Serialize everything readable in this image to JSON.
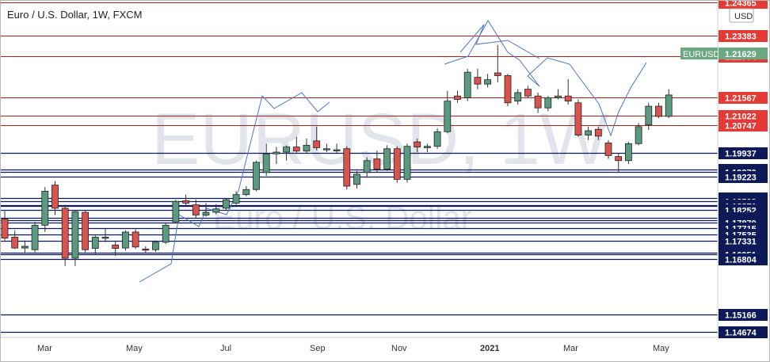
{
  "chart_data": {
    "type": "candlestick",
    "title": "Euro / U.S. Dollar, 1W, FXCM",
    "watermark": {
      "symbol": "EURUSD, 1W",
      "description": "Euro / U.S. Dollar"
    },
    "currency_badge": "USD",
    "symbol_tag": "EURUSD",
    "last_price": "1.21629",
    "last_price_color": "#6aa882",
    "x_tick_labels": [
      "Mar",
      "May",
      "Jul",
      "Sep",
      "Nov",
      "2021",
      "Mar",
      "May"
    ],
    "y_range": [
      1.145,
      1.244
    ],
    "colors": {
      "up": "#5a9a80",
      "down": "#d9534f",
      "wick": "#333333",
      "support": "#0d1a57",
      "resistance": "#a0231e",
      "neutral": "#5a8fae"
    },
    "price_levels": [
      {
        "price": "1.24365",
        "value": 1.24365,
        "type": "resistance"
      },
      {
        "price": "1.23383",
        "value": 1.23383,
        "type": "resistance"
      },
      {
        "price": "1.22774",
        "value": 1.22774,
        "type": "resistance"
      },
      {
        "price": "1.21567",
        "value": 1.21567,
        "type": "resistance"
      },
      {
        "price": "1.21022",
        "value": 1.21022,
        "type": "resistance"
      },
      {
        "price": "1.20747",
        "value": 1.20747,
        "type": "resistance"
      },
      {
        "price": "1.19937",
        "value": 1.19937,
        "type": "support"
      },
      {
        "price": "1.19431",
        "value": 1.19431,
        "type": "support"
      },
      {
        "price": "1.19370",
        "value": 1.1937,
        "type": "support"
      },
      {
        "price": "1.19223",
        "value": 1.19223,
        "type": "support"
      },
      {
        "price": "1.18608",
        "value": 1.18608,
        "type": "support"
      },
      {
        "price": "1.18509",
        "value": 1.18509,
        "type": "support"
      },
      {
        "price": "1.18393",
        "value": 1.18393,
        "type": "support"
      },
      {
        "price": "1.18371",
        "value": 1.18371,
        "type": "support"
      },
      {
        "price": "1.18252",
        "value": 1.18252,
        "type": "support"
      },
      {
        "price": "1.18020",
        "value": 1.1802,
        "type": "support"
      },
      {
        "price": "1.17945",
        "value": 1.17945,
        "type": "support"
      },
      {
        "price": "1.17870",
        "value": 1.1787,
        "type": "support"
      },
      {
        "price": "1.17715",
        "value": 1.17715,
        "type": "support"
      },
      {
        "price": "1.17535",
        "value": 1.17535,
        "type": "support"
      },
      {
        "price": "1.17331",
        "value": 1.17331,
        "type": "support"
      },
      {
        "price": "1.17002",
        "value": 1.17002,
        "type": "support"
      },
      {
        "price": "1.16951",
        "value": 1.16951,
        "type": "support"
      },
      {
        "price": "1.16804",
        "value": 1.16804,
        "type": "support"
      },
      {
        "price": "1.15166",
        "value": 1.15166,
        "type": "support"
      },
      {
        "price": "1.14674",
        "value": 1.14674,
        "type": "support"
      }
    ],
    "series": [
      {
        "o": 1.1798,
        "h": 1.1822,
        "l": 1.1735,
        "c": 1.1742
      },
      {
        "o": 1.1745,
        "h": 1.1765,
        "l": 1.171,
        "c": 1.1713
      },
      {
        "o": 1.1713,
        "h": 1.1735,
        "l": 1.17,
        "c": 1.1718
      },
      {
        "o": 1.1708,
        "h": 1.179,
        "l": 1.17,
        "c": 1.178
      },
      {
        "o": 1.178,
        "h": 1.1892,
        "l": 1.176,
        "c": 1.188
      },
      {
        "o": 1.1898,
        "h": 1.191,
        "l": 1.181,
        "c": 1.183
      },
      {
        "o": 1.183,
        "h": 1.184,
        "l": 1.166,
        "c": 1.1683
      },
      {
        "o": 1.1683,
        "h": 1.1822,
        "l": 1.166,
        "c": 1.182
      },
      {
        "o": 1.1818,
        "h": 1.1825,
        "l": 1.17,
        "c": 1.1708
      },
      {
        "o": 1.1712,
        "h": 1.175,
        "l": 1.1695,
        "c": 1.1745
      },
      {
        "o": 1.1745,
        "h": 1.177,
        "l": 1.173,
        "c": 1.1745
      },
      {
        "o": 1.1722,
        "h": 1.1735,
        "l": 1.169,
        "c": 1.1712
      },
      {
        "o": 1.1713,
        "h": 1.1765,
        "l": 1.1705,
        "c": 1.176
      },
      {
        "o": 1.176,
        "h": 1.1768,
        "l": 1.171,
        "c": 1.1716
      },
      {
        "o": 1.171,
        "h": 1.1718,
        "l": 1.1696,
        "c": 1.1708
      },
      {
        "o": 1.1708,
        "h": 1.1735,
        "l": 1.1702,
        "c": 1.173
      },
      {
        "o": 1.173,
        "h": 1.1785,
        "l": 1.1725,
        "c": 1.178
      },
      {
        "o": 1.179,
        "h": 1.1855,
        "l": 1.1788,
        "c": 1.185
      },
      {
        "o": 1.1852,
        "h": 1.187,
        "l": 1.1835,
        "c": 1.1845
      },
      {
        "o": 1.184,
        "h": 1.1855,
        "l": 1.18,
        "c": 1.181
      },
      {
        "o": 1.181,
        "h": 1.1845,
        "l": 1.1805,
        "c": 1.1818
      },
      {
        "o": 1.1818,
        "h": 1.1842,
        "l": 1.1812,
        "c": 1.1828
      },
      {
        "o": 1.183,
        "h": 1.186,
        "l": 1.1822,
        "c": 1.1855
      },
      {
        "o": 1.1845,
        "h": 1.188,
        "l": 1.184,
        "c": 1.187
      },
      {
        "o": 1.187,
        "h": 1.1895,
        "l": 1.1865,
        "c": 1.1885
      },
      {
        "o": 1.1885,
        "h": 1.197,
        "l": 1.188,
        "c": 1.1965
      },
      {
        "o": 1.1935,
        "h": 1.202,
        "l": 1.1925,
        "c": 1.199
      },
      {
        "o": 1.199,
        "h": 1.201,
        "l": 1.196,
        "c": 1.1995
      },
      {
        "o": 1.1995,
        "h": 1.2015,
        "l": 1.197,
        "c": 1.201
      },
      {
        "o": 1.201,
        "h": 1.204,
        "l": 1.199,
        "c": 1.1998
      },
      {
        "o": 1.1998,
        "h": 1.2035,
        "l": 1.199,
        "c": 1.2015
      },
      {
        "o": 1.2028,
        "h": 1.207,
        "l": 1.2,
        "c": 1.2008
      },
      {
        "o": 1.2005,
        "h": 1.202,
        "l": 1.1995,
        "c": 1.2005
      },
      {
        "o": 1.2,
        "h": 1.202,
        "l": 1.1992,
        "c": 1.2002
      },
      {
        "o": 1.2005,
        "h": 1.2012,
        "l": 1.1885,
        "c": 1.1895
      },
      {
        "o": 1.19,
        "h": 1.194,
        "l": 1.1888,
        "c": 1.193
      },
      {
        "o": 1.1935,
        "h": 1.198,
        "l": 1.192,
        "c": 1.197
      },
      {
        "o": 1.1975,
        "h": 1.2,
        "l": 1.1935,
        "c": 1.1945
      },
      {
        "o": 1.1945,
        "h": 1.2015,
        "l": 1.194,
        "c": 1.2005
      },
      {
        "o": 1.2005,
        "h": 1.2012,
        "l": 1.1905,
        "c": 1.1915
      },
      {
        "o": 1.1915,
        "h": 1.202,
        "l": 1.1905,
        "c": 1.2012
      },
      {
        "o": 1.2025,
        "h": 1.2035,
        "l": 1.1995,
        "c": 1.201
      },
      {
        "o": 1.2008,
        "h": 1.202,
        "l": 1.1995,
        "c": 1.2012
      },
      {
        "o": 1.2012,
        "h": 1.2065,
        "l": 1.2005,
        "c": 1.2055
      },
      {
        "o": 1.2055,
        "h": 1.2175,
        "l": 1.205,
        "c": 1.2145
      },
      {
        "o": 1.216,
        "h": 1.2175,
        "l": 1.214,
        "c": 1.215
      },
      {
        "o": 1.2155,
        "h": 1.224,
        "l": 1.2145,
        "c": 1.223
      },
      {
        "o": 1.2215,
        "h": 1.224,
        "l": 1.218,
        "c": 1.2195
      },
      {
        "o": 1.2195,
        "h": 1.2225,
        "l": 1.2185,
        "c": 1.2208
      },
      {
        "o": 1.2228,
        "h": 1.231,
        "l": 1.22,
        "c": 1.222
      },
      {
        "o": 1.222,
        "h": 1.2225,
        "l": 1.213,
        "c": 1.214
      },
      {
        "o": 1.2145,
        "h": 1.218,
        "l": 1.2135,
        "c": 1.217
      },
      {
        "o": 1.218,
        "h": 1.219,
        "l": 1.2155,
        "c": 1.216
      },
      {
        "o": 1.216,
        "h": 1.217,
        "l": 1.211,
        "c": 1.2125
      },
      {
        "o": 1.2125,
        "h": 1.216,
        "l": 1.2115,
        "c": 1.2155
      },
      {
        "o": 1.2155,
        "h": 1.218,
        "l": 1.215,
        "c": 1.216
      },
      {
        "o": 1.216,
        "h": 1.221,
        "l": 1.2135,
        "c": 1.2145
      },
      {
        "o": 1.214,
        "h": 1.215,
        "l": 1.204,
        "c": 1.2045
      },
      {
        "o": 1.2045,
        "h": 1.207,
        "l": 1.203,
        "c": 1.2058
      },
      {
        "o": 1.2062,
        "h": 1.207,
        "l": 1.203,
        "c": 1.2042
      },
      {
        "o": 1.2022,
        "h": 1.203,
        "l": 1.1975,
        "c": 1.1985
      },
      {
        "o": 1.1982,
        "h": 1.199,
        "l": 1.1935,
        "c": 1.197
      },
      {
        "o": 1.197,
        "h": 1.2025,
        "l": 1.196,
        "c": 1.202
      },
      {
        "o": 1.202,
        "h": 1.208,
        "l": 1.2015,
        "c": 1.207
      },
      {
        "o": 1.2075,
        "h": 1.214,
        "l": 1.206,
        "c": 1.213
      },
      {
        "o": 1.213,
        "h": 1.214,
        "l": 1.2095,
        "c": 1.21
      },
      {
        "o": 1.21,
        "h": 1.218,
        "l": 1.2095,
        "c": 1.2163
      }
    ]
  }
}
